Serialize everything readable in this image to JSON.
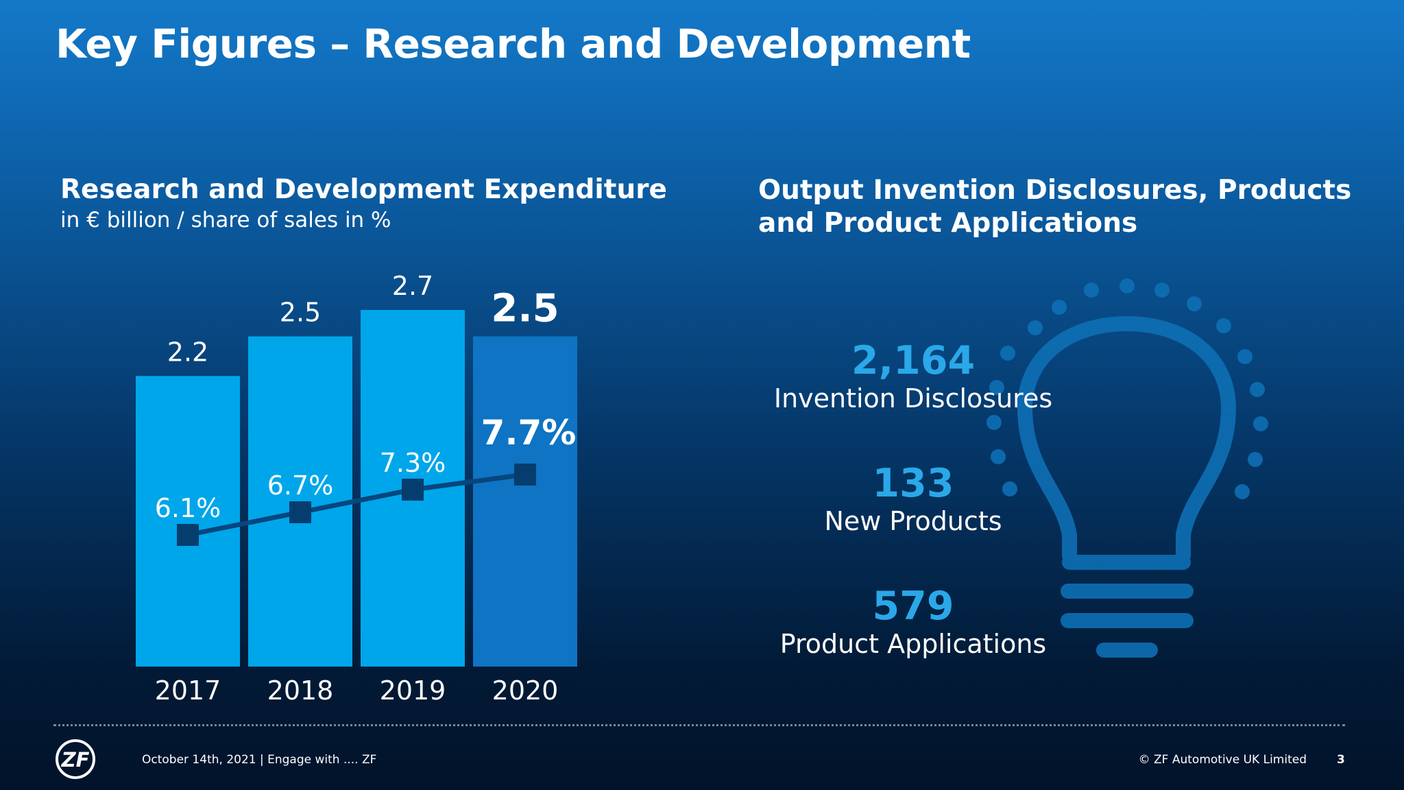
{
  "title": "Key Figures – Research and Development",
  "left_panel": {
    "heading": "Research and Development Expenditure",
    "subheading": "in € billion / share of sales in %"
  },
  "right_panel": {
    "heading": "Output Invention Disclosures, Products and Product Applications",
    "stats": [
      {
        "value": "2,164",
        "label": "Invention Disclosures"
      },
      {
        "value": "133",
        "label": "New Products"
      },
      {
        "value": "579",
        "label": "Product Applications"
      }
    ]
  },
  "chart_data": {
    "type": "bar",
    "title": "Research and Development Expenditure",
    "subtitle": "in € billion / share of sales in %",
    "categories": [
      "2017",
      "2018",
      "2019",
      "2020"
    ],
    "series": [
      {
        "name": "Expenditure (€ billion)",
        "type": "bar",
        "values": [
          2.2,
          2.5,
          2.7,
          2.5
        ],
        "labels": [
          "2.2",
          "2.5",
          "2.7",
          "2.5"
        ]
      },
      {
        "name": "Share of sales (%)",
        "type": "line",
        "values": [
          6.1,
          6.7,
          7.3,
          7.7
        ],
        "labels": [
          "6.1%",
          "6.7%",
          "7.3%",
          "7.7%"
        ]
      }
    ],
    "highlight_index": 3,
    "ylim_bars": [
      0,
      2.7
    ],
    "ylim_line": [
      0,
      10
    ],
    "colors": {
      "bar": "#00a6ea",
      "bar_highlight": "#0f74c3",
      "line": "#07467e",
      "marker": "#063d6f"
    }
  },
  "footer": {
    "logo_text": "ZF",
    "left_text": "October 14th, 2021 | Engage with .... ZF",
    "right_text": "© ZF Automotive UK Limited",
    "page_number": "3"
  }
}
